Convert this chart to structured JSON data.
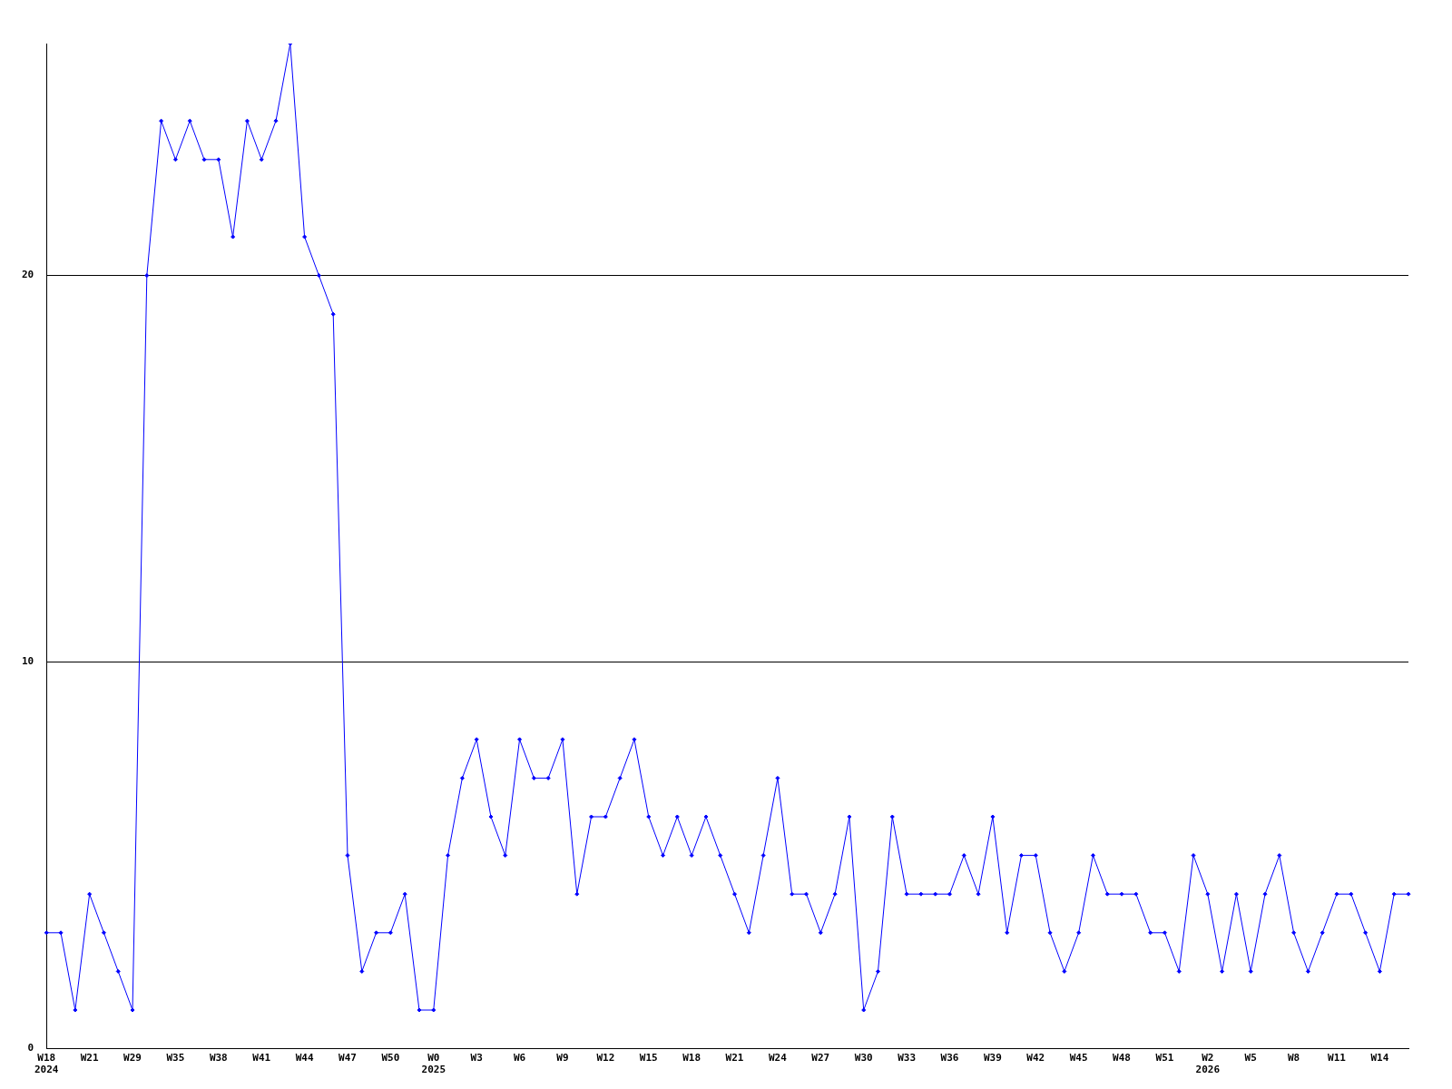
{
  "chart_data": {
    "type": "line",
    "categories": [
      "W18\n2024",
      null,
      null,
      "W21",
      null,
      null,
      "W29",
      null,
      null,
      "W35",
      null,
      null,
      "W38",
      null,
      null,
      "W41",
      null,
      null,
      "W44",
      null,
      null,
      "W47",
      null,
      null,
      "W50",
      null,
      null,
      "W0\n2025",
      null,
      null,
      "W3",
      null,
      null,
      "W6",
      null,
      null,
      "W9",
      null,
      null,
      "W12",
      null,
      null,
      "W15",
      null,
      null,
      "W18",
      null,
      null,
      "W21",
      null,
      null,
      "W24",
      null,
      null,
      "W27",
      null,
      null,
      "W30",
      null,
      null,
      "W33",
      null,
      null,
      "W36",
      null,
      null,
      "W39",
      null,
      null,
      "W42",
      null,
      null,
      "W45",
      null,
      null,
      "W48",
      null,
      null,
      "W51",
      null,
      null,
      "W2\n2026",
      null,
      null,
      "W5",
      null,
      null,
      "W8",
      null,
      null,
      "W11",
      null,
      null,
      "W14",
      null,
      null
    ],
    "series": [
      {
        "color": "#0000ff",
        "values": [
          3,
          3,
          1,
          4,
          3,
          2,
          1,
          20,
          24,
          23,
          24,
          23,
          23,
          21,
          24,
          23,
          24,
          26,
          21,
          20,
          19,
          5,
          2,
          3,
          3,
          4,
          1,
          1,
          5,
          7,
          8,
          6,
          5,
          8,
          7,
          7,
          8,
          4,
          6,
          6,
          7,
          8,
          6,
          5,
          6,
          5,
          6,
          5,
          4,
          3,
          5,
          7,
          4,
          4,
          3,
          4,
          6,
          1,
          2,
          6,
          4,
          4,
          4,
          4,
          5,
          4,
          6,
          3,
          5,
          5,
          3,
          2,
          3,
          5,
          4,
          4,
          4,
          3,
          3,
          2,
          5,
          4,
          2,
          4,
          2,
          4,
          5,
          3,
          2,
          3,
          4,
          4,
          3,
          2,
          4,
          4
        ]
      }
    ],
    "ylim": [
      0,
      26
    ],
    "yticks": [
      0,
      10,
      20
    ],
    "grid": "y",
    "marker": "diamond",
    "line_style": "solid"
  }
}
